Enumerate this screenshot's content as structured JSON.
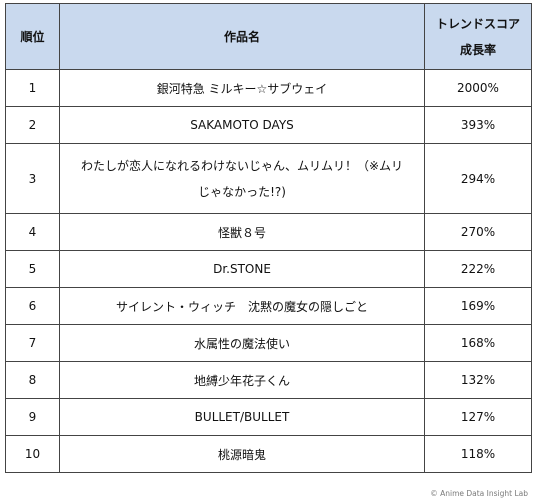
{
  "table": {
    "headers": {
      "rank": "順位",
      "title": "作品名",
      "score_line1": "トレンドスコア",
      "score_line2": "成長率"
    },
    "rows": [
      {
        "rank": "1",
        "title": "銀河特急 ミルキー☆サブウェイ",
        "score": "2000%"
      },
      {
        "rank": "2",
        "title": "SAKAMOTO DAYS",
        "score": "393%"
      },
      {
        "rank": "3",
        "title_line1": "わたしが恋人になれるわけないじゃん、ムリムリ！（※ムリ",
        "title_line2": "じゃなかった!?)",
        "score": "294%"
      },
      {
        "rank": "4",
        "title": "怪獣８号",
        "score": "270%"
      },
      {
        "rank": "5",
        "title": "Dr.STONE",
        "score": "222%"
      },
      {
        "rank": "6",
        "title": "サイレント・ウィッチ　沈黙の魔女の隠しごと",
        "score": "169%"
      },
      {
        "rank": "7",
        "title": "水属性の魔法使い",
        "score": "168%"
      },
      {
        "rank": "8",
        "title": "地縛少年花子くん",
        "score": "132%"
      },
      {
        "rank": "9",
        "title": "BULLET/BULLET",
        "score": "127%"
      },
      {
        "rank": "10",
        "title": "桃源暗鬼",
        "score": "118%"
      }
    ]
  },
  "credit": "© Anime Data Insight Lab",
  "colors": {
    "header_background": "#c9d9ee",
    "border": "#444444"
  }
}
